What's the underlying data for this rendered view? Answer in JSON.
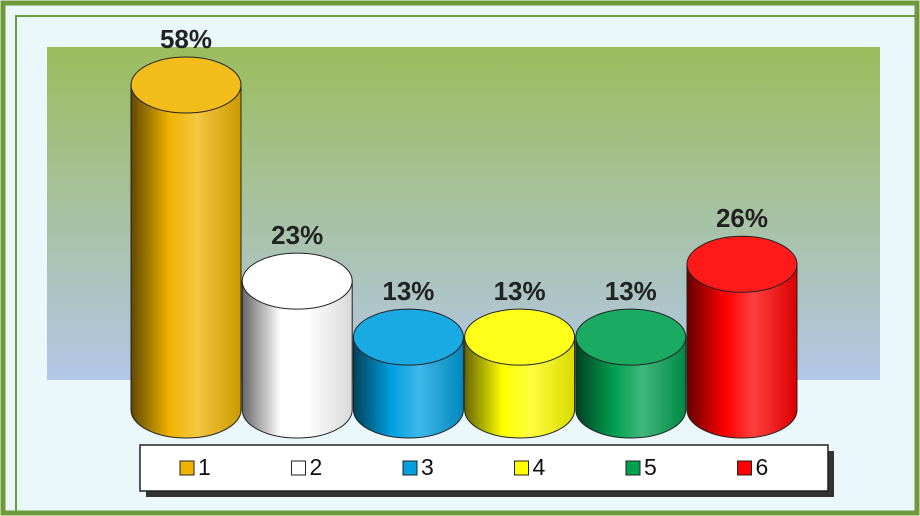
{
  "chart_data": {
    "type": "bar",
    "categories": [
      "1",
      "2",
      "3",
      "4",
      "5",
      "6"
    ],
    "values": [
      58,
      23,
      13,
      13,
      13,
      26
    ],
    "value_labels": [
      "58%",
      "23%",
      "13%",
      "13%",
      "13%",
      "26%"
    ],
    "colors": [
      "#f0b400",
      "#ffffff",
      "#00a0e0",
      "#ffff00",
      "#00a050",
      "#ff0000"
    ],
    "legend": "bottom"
  }
}
